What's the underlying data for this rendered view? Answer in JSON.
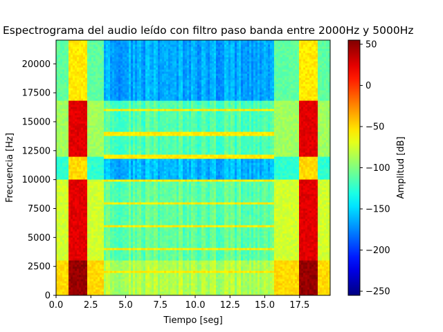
{
  "chart_data": {
    "type": "heatmap",
    "title": "Espectrograma del audio leído con filtro paso banda entre 2000Hz y 5000Hz",
    "xlabel": "Tiempo [seg]",
    "ylabel": "Frecuencia [Hz]",
    "xlim": [
      0,
      19.7
    ],
    "ylim": [
      0,
      22050
    ],
    "x_ticks": [
      0.0,
      2.5,
      5.0,
      7.5,
      10.0,
      12.5,
      15.0,
      17.5
    ],
    "x_tick_labels": [
      "0.0",
      "2.5",
      "5.0",
      "7.5",
      "10.0",
      "12.5",
      "15.0",
      "17.5"
    ],
    "y_ticks": [
      0,
      2500,
      5000,
      7500,
      10000,
      12500,
      15000,
      17500,
      20000
    ],
    "y_tick_labels": [
      "0",
      "2500",
      "5000",
      "7500",
      "10000",
      "12500",
      "15000",
      "17500",
      "20000"
    ],
    "colorbar": {
      "label": "Amplitud [dB]",
      "range": [
        -255,
        55
      ],
      "ticks": [
        50,
        0,
        -50,
        -100,
        -150,
        -200,
        -250
      ],
      "tick_labels": [
        "50",
        "0",
        "−50",
        "−100",
        "−150",
        "−200",
        "−250"
      ],
      "colormap": "jet"
    },
    "time_segments": [
      {
        "t0": 0.0,
        "t1": 0.9,
        "kind": "low"
      },
      {
        "t0": 0.9,
        "t1": 2.2,
        "kind": "loud"
      },
      {
        "t0": 2.2,
        "t1": 3.5,
        "kind": "low"
      },
      {
        "t0": 3.5,
        "t1": 15.7,
        "kind": "signal"
      },
      {
        "t0": 15.7,
        "t1": 17.5,
        "kind": "low"
      },
      {
        "t0": 17.5,
        "t1": 18.8,
        "kind": "loud"
      },
      {
        "t0": 18.8,
        "t1": 19.7,
        "kind": "low"
      }
    ],
    "freq_bands": [
      {
        "f0": 0,
        "f1": 3000,
        "loud": 48,
        "low": -50,
        "signal": -85
      },
      {
        "f0": 3000,
        "f1": 10000,
        "loud": 25,
        "low": -75,
        "signal": -110
      },
      {
        "f0": 10000,
        "f1": 12000,
        "loud": -50,
        "low": -125,
        "signal": -160
      },
      {
        "f0": 12000,
        "f1": 16800,
        "loud": 25,
        "low": -90,
        "signal": -115
      },
      {
        "f0": 16800,
        "f1": 22050,
        "loud": -55,
        "low": -110,
        "signal": -165
      }
    ],
    "harmonic_lines_hz": [
      2000,
      4000,
      6000,
      8000,
      10000,
      12000,
      14000,
      16000
    ],
    "harmonic_level": -55
  }
}
